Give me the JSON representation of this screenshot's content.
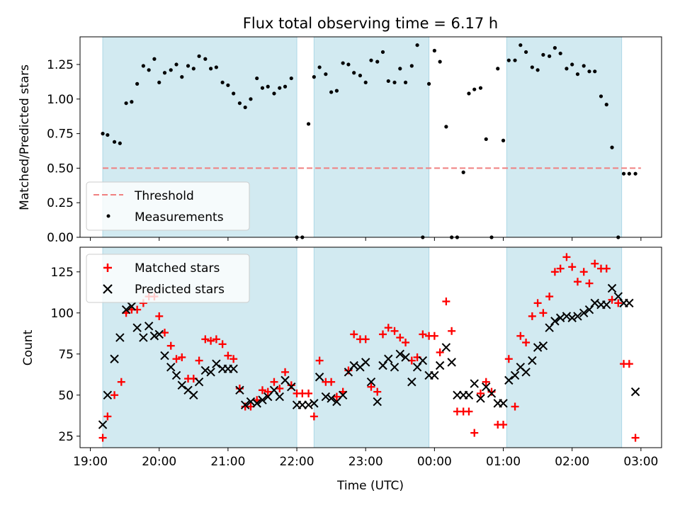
{
  "chart_data": [
    {
      "type": "scatter",
      "title": "Flux total observing time = 6.17 h",
      "xlabel": "",
      "ylabel": "Matched/Predicted stars",
      "xlim_hours": [
        18.85,
        27.3
      ],
      "ylim": [
        0,
        1.45
      ],
      "yticks": [
        "0.00",
        "0.25",
        "0.50",
        "0.75",
        "1.00",
        "1.25"
      ],
      "shaded_intervals_hours": [
        [
          19.18,
          22.0
        ],
        [
          22.25,
          23.92
        ],
        [
          25.05,
          26.72
        ]
      ],
      "shade_color": "#ADD8E6",
      "threshold": {
        "label": "Threshold",
        "value": 0.5,
        "range_hours": [
          19.18,
          27.0
        ],
        "color": "#f08080"
      },
      "legend": {
        "position": "lower-left",
        "entries": [
          "Threshold",
          "Measurements"
        ]
      },
      "series": [
        {
          "name": "Measurements",
          "color": "#000000",
          "x_hours": [
            19.18,
            19.25,
            19.35,
            19.43,
            19.52,
            19.6,
            19.68,
            19.77,
            19.85,
            19.93,
            20.0,
            20.08,
            20.17,
            20.25,
            20.33,
            20.42,
            20.5,
            20.58,
            20.67,
            20.75,
            20.83,
            20.92,
            21.0,
            21.08,
            21.17,
            21.25,
            21.33,
            21.42,
            21.5,
            21.58,
            21.67,
            21.75,
            21.83,
            21.92,
            22.0,
            22.08,
            22.17,
            22.25,
            22.33,
            22.42,
            22.5,
            22.58,
            22.67,
            22.75,
            22.83,
            22.92,
            23.0,
            23.08,
            23.17,
            23.25,
            23.33,
            23.42,
            23.5,
            23.58,
            23.67,
            23.75,
            23.83,
            23.92,
            24.0,
            24.08,
            24.17,
            24.25,
            24.33,
            24.42,
            24.5,
            24.58,
            24.67,
            24.75,
            24.83,
            24.92,
            25.0,
            25.08,
            25.17,
            25.25,
            25.33,
            25.42,
            25.5,
            25.58,
            25.67,
            25.75,
            25.83,
            25.92,
            26.0,
            26.08,
            26.17,
            26.25,
            26.33,
            26.42,
            26.5,
            26.58,
            26.67,
            26.75,
            26.83,
            26.92
          ],
          "y": [
            0.75,
            0.74,
            0.69,
            0.68,
            0.97,
            0.98,
            1.11,
            1.24,
            1.21,
            1.29,
            1.12,
            1.19,
            1.21,
            1.25,
            1.16,
            1.24,
            1.22,
            1.31,
            1.29,
            1.22,
            1.23,
            1.12,
            1.1,
            1.04,
            0.97,
            0.94,
            1.0,
            1.15,
            1.08,
            1.09,
            1.04,
            1.08,
            1.09,
            1.15,
            0.0,
            0.0,
            0.82,
            1.16,
            1.23,
            1.18,
            1.05,
            1.06,
            1.26,
            1.25,
            1.19,
            1.17,
            1.12,
            1.28,
            1.27,
            1.34,
            1.13,
            1.12,
            1.22,
            1.12,
            1.24,
            1.39,
            0.0,
            1.11,
            1.35,
            1.27,
            0.8,
            0.0,
            0.0,
            0.47,
            1.04,
            1.07,
            1.08,
            0.71,
            0.0,
            1.22,
            0.7,
            1.28,
            1.28,
            1.39,
            1.34,
            1.23,
            1.21,
            1.32,
            1.31,
            1.37,
            1.33,
            1.22,
            1.25,
            1.18,
            1.24,
            1.2,
            1.2,
            1.02,
            0.96,
            0.65,
            0.0,
            0.46,
            0.46,
            0.46
          ]
        }
      ]
    },
    {
      "type": "scatter",
      "title": "",
      "xlabel": "Time (UTC)",
      "ylabel": "Count",
      "xlim_hours": [
        18.85,
        27.3
      ],
      "ylim": [
        18,
        140
      ],
      "yticks": [
        "25",
        "50",
        "75",
        "100",
        "125"
      ],
      "xticks": [
        "19:00",
        "20:00",
        "21:00",
        "22:00",
        "23:00",
        "00:00",
        "01:00",
        "02:00",
        "03:00"
      ],
      "xtick_hours": [
        19,
        20,
        21,
        22,
        23,
        24,
        25,
        26,
        27
      ],
      "shaded_intervals_hours": [
        [
          19.18,
          22.0
        ],
        [
          22.25,
          23.92
        ],
        [
          25.05,
          26.72
        ]
      ],
      "legend": {
        "position": "upper-left",
        "entries": [
          "Matched stars",
          "Predicted stars"
        ]
      },
      "series": [
        {
          "name": "Matched stars",
          "marker": "plus",
          "color": "#ff0000",
          "x_hours": [
            19.18,
            19.25,
            19.35,
            19.45,
            19.52,
            19.6,
            19.68,
            19.77,
            19.85,
            19.93,
            20.0,
            20.08,
            20.17,
            20.25,
            20.33,
            20.42,
            20.5,
            20.58,
            20.67,
            20.75,
            20.83,
            20.92,
            21.0,
            21.08,
            21.17,
            21.25,
            21.33,
            21.42,
            21.5,
            21.58,
            21.67,
            21.75,
            21.83,
            21.92,
            22.0,
            22.08,
            22.17,
            22.25,
            22.33,
            22.42,
            22.5,
            22.58,
            22.67,
            22.75,
            22.83,
            22.92,
            23.0,
            23.08,
            23.17,
            23.25,
            23.33,
            23.42,
            23.5,
            23.58,
            23.67,
            23.75,
            23.83,
            23.92,
            24.0,
            24.08,
            24.17,
            24.25,
            24.33,
            24.42,
            24.5,
            24.58,
            24.67,
            24.75,
            24.83,
            24.92,
            25.0,
            25.08,
            25.17,
            25.25,
            25.33,
            25.42,
            25.5,
            25.58,
            25.67,
            25.75,
            25.83,
            25.92,
            26.0,
            26.08,
            26.17,
            26.25,
            26.33,
            26.42,
            26.5,
            26.58,
            26.67,
            26.75,
            26.83,
            26.92
          ],
          "y": [
            24,
            37,
            50,
            58,
            100,
            102,
            102,
            106,
            110,
            110,
            98,
            88,
            80,
            72,
            73,
            60,
            60,
            71,
            84,
            83,
            84,
            81,
            74,
            72,
            54,
            43,
            43,
            47,
            53,
            52,
            58,
            54,
            64,
            56,
            51,
            51,
            51,
            37,
            71,
            58,
            58,
            49,
            52,
            65,
            87,
            84,
            84,
            55,
            52,
            87,
            91,
            89,
            85,
            82,
            71,
            73,
            87,
            86,
            86,
            76,
            107,
            89,
            40,
            40,
            40,
            27,
            51,
            58,
            52,
            32,
            32,
            72,
            43,
            86,
            82,
            98,
            106,
            100,
            110,
            125,
            127,
            134,
            128,
            119,
            125,
            118,
            130,
            127,
            127,
            108,
            106,
            69,
            69,
            24
          ]
        },
        {
          "name": "Predicted stars",
          "marker": "x",
          "color": "#000000",
          "x_hours": [
            19.18,
            19.25,
            19.35,
            19.43,
            19.52,
            19.6,
            19.68,
            19.77,
            19.85,
            19.93,
            20.0,
            20.08,
            20.17,
            20.25,
            20.33,
            20.42,
            20.5,
            20.58,
            20.67,
            20.75,
            20.83,
            20.92,
            21.0,
            21.08,
            21.17,
            21.25,
            21.33,
            21.42,
            21.5,
            21.58,
            21.67,
            21.75,
            21.83,
            21.92,
            22.0,
            22.08,
            22.17,
            22.25,
            22.33,
            22.42,
            22.5,
            22.58,
            22.67,
            22.75,
            22.83,
            22.92,
            23.0,
            23.08,
            23.17,
            23.25,
            23.33,
            23.42,
            23.5,
            23.58,
            23.67,
            23.75,
            23.83,
            23.92,
            24.0,
            24.08,
            24.17,
            24.25,
            24.33,
            24.42,
            24.5,
            24.58,
            24.67,
            24.75,
            24.83,
            24.92,
            25.0,
            25.08,
            25.17,
            25.25,
            25.33,
            25.42,
            25.5,
            25.58,
            25.67,
            25.75,
            25.83,
            25.92,
            26.0,
            26.08,
            26.17,
            26.25,
            26.33,
            26.42,
            26.5,
            26.58,
            26.67,
            26.75,
            26.83,
            26.92
          ],
          "y": [
            32,
            50,
            72,
            85,
            102,
            104,
            91,
            85,
            92,
            86,
            87,
            74,
            67,
            62,
            56,
            53,
            50,
            58,
            65,
            64,
            69,
            66,
            66,
            66,
            53,
            44,
            46,
            45,
            47,
            49,
            53,
            49,
            59,
            55,
            44,
            44,
            44,
            45,
            61,
            49,
            48,
            46,
            50,
            64,
            68,
            67,
            70,
            58,
            46,
            68,
            72,
            67,
            75,
            73,
            58,
            67,
            71,
            62,
            62,
            68,
            79,
            70,
            50,
            50,
            50,
            57,
            48,
            55,
            51,
            45,
            45,
            59,
            62,
            67,
            64,
            71,
            79,
            80,
            91,
            95,
            97,
            98,
            97,
            98,
            100,
            102,
            106,
            105,
            105,
            115,
            110,
            106,
            106,
            52
          ]
        }
      ]
    }
  ]
}
